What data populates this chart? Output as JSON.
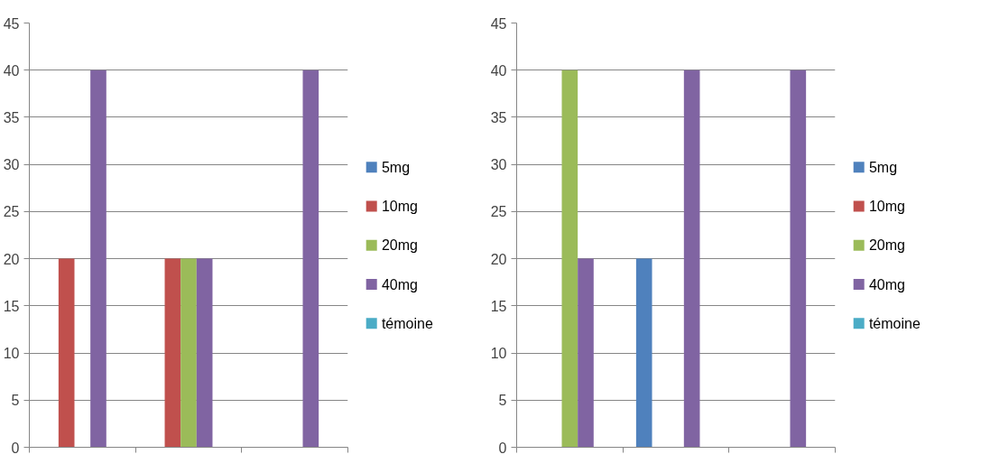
{
  "chart_data": [
    {
      "type": "bar",
      "categories": [
        null,
        null,
        null
      ],
      "ylim": [
        0,
        45
      ],
      "yticks": [
        0,
        5,
        10,
        15,
        20,
        25,
        30,
        35,
        40,
        45
      ],
      "grid": "y",
      "legend": "right",
      "tick_labels": "y",
      "series": [
        {
          "name": "5mg",
          "color": "#4f81bd",
          "values": [
            0,
            0,
            0
          ]
        },
        {
          "name": "10mg",
          "color": "#c0504d",
          "values": [
            20,
            20,
            0
          ]
        },
        {
          "name": "20mg",
          "color": "#9bbb59",
          "values": [
            0,
            20,
            0
          ]
        },
        {
          "name": "40mg",
          "color": "#8064a2",
          "values": [
            40,
            20,
            40
          ]
        },
        {
          "name": "témoine",
          "color": "#4bacc6",
          "values": [
            0,
            0,
            0
          ]
        }
      ]
    },
    {
      "type": "bar",
      "categories": [
        null,
        null,
        null
      ],
      "ylim": [
        0,
        45
      ],
      "yticks": [
        0,
        5,
        10,
        15,
        20,
        25,
        30,
        35,
        40,
        45
      ],
      "grid": "y",
      "legend": "right",
      "tick_labels": "y",
      "series": [
        {
          "name": "5mg",
          "color": "#4f81bd",
          "values": [
            0,
            20,
            0
          ]
        },
        {
          "name": "10mg",
          "color": "#c0504d",
          "values": [
            0,
            0,
            0
          ]
        },
        {
          "name": "20mg",
          "color": "#9bbb59",
          "values": [
            40,
            0,
            0
          ]
        },
        {
          "name": "40mg",
          "color": "#8064a2",
          "values": [
            20,
            40,
            40
          ]
        },
        {
          "name": "témoine",
          "color": "#4bacc6",
          "values": [
            0,
            0,
            0
          ]
        }
      ]
    }
  ]
}
